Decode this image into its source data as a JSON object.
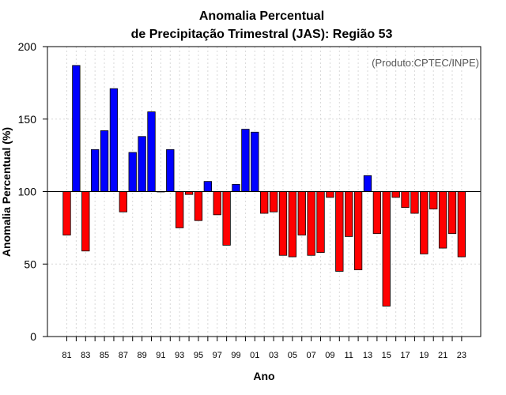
{
  "chart_data": {
    "type": "bar",
    "title": "Anomalia Percentual",
    "subtitle": "de Precipitação Trimestral (JAS): Região 53",
    "xlabel": "Ano",
    "ylabel": "Anomalia Percentual (%)",
    "credit": "(Produto:CPTEC/INPE)",
    "baseline": 100,
    "ylim": [
      0,
      200
    ],
    "yticks": [
      0,
      50,
      100,
      150,
      200
    ],
    "grid": true,
    "categories": [
      "81",
      "82",
      "83",
      "84",
      "85",
      "86",
      "87",
      "88",
      "89",
      "90",
      "91",
      "92",
      "93",
      "94",
      "95",
      "96",
      "97",
      "98",
      "99",
      "00",
      "01",
      "02",
      "03",
      "04",
      "05",
      "06",
      "07",
      "08",
      "09",
      "10",
      "11",
      "12",
      "13",
      "14",
      "15",
      "16",
      "17",
      "18",
      "19",
      "20",
      "21",
      "22",
      "23"
    ],
    "xtick_labels": [
      "81",
      "83",
      "85",
      "87",
      "89",
      "91",
      "93",
      "95",
      "97",
      "99",
      "01",
      "03",
      "05",
      "07",
      "09",
      "11",
      "13",
      "15",
      "17",
      "19",
      "21",
      "23"
    ],
    "values": [
      70,
      187,
      59,
      129,
      142,
      171,
      86,
      127,
      138,
      155,
      100,
      129,
      75,
      98,
      80,
      107,
      84,
      63,
      105,
      143,
      141,
      85,
      86,
      56,
      55,
      70,
      56,
      58,
      96,
      45,
      69,
      46,
      111,
      71,
      21,
      96,
      89,
      85,
      57,
      88,
      61,
      71,
      55
    ],
    "colors": {
      "above": "#0000ff",
      "below": "#ff0000",
      "bar_stroke": "#000000",
      "grid": "#d8d8d8",
      "baseline": "#000000"
    }
  }
}
